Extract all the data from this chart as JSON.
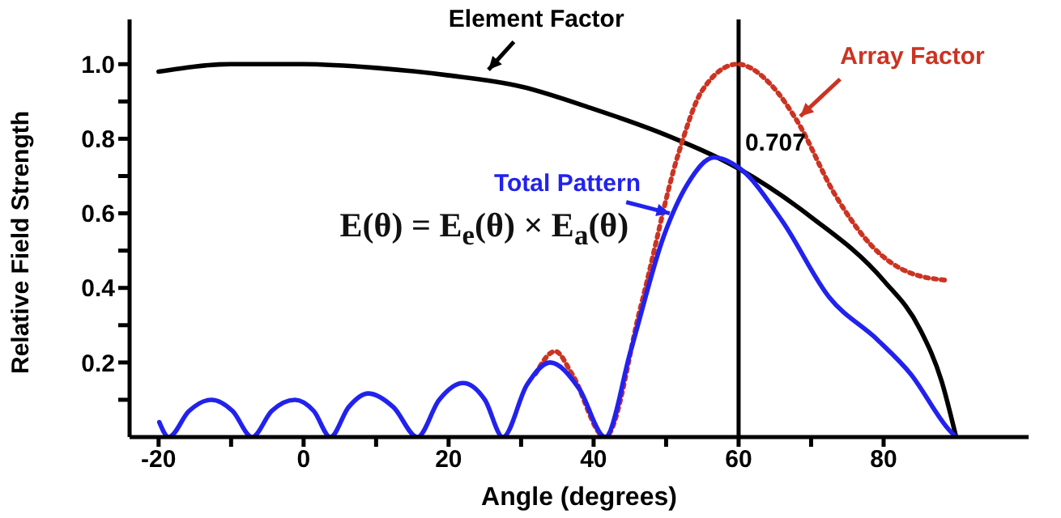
{
  "chart_data": {
    "type": "line",
    "xlabel": "Angle (degrees)",
    "ylabel": "Relative Field Strength",
    "xlim": [
      -24,
      100
    ],
    "ylim": [
      0,
      1.12
    ],
    "xticks": [
      -20,
      {
        "value": -10,
        "label": null
      },
      0,
      {
        "value": 10,
        "label": null
      },
      20,
      {
        "value": 30,
        "label": null
      },
      40,
      {
        "value": 50,
        "label": null
      },
      60,
      {
        "value": 70,
        "label": null
      },
      80
    ],
    "yticks": [
      {
        "value": 0.1,
        "label": null
      },
      0.2,
      {
        "value": 0.3,
        "label": null
      },
      0.4,
      {
        "value": 0.5,
        "label": null
      },
      0.6,
      {
        "value": 0.7,
        "label": null
      },
      0.8,
      {
        "value": 0.9,
        "label": null
      },
      {
        "value": 1,
        "label": "1.0"
      }
    ],
    "grid": false,
    "legend": false,
    "marker": "none",
    "series": [
      {
        "name": "Element Factor",
        "color": "#000000",
        "line_style": "solid",
        "x": [
          -20,
          -10,
          0,
          10,
          20,
          30,
          40,
          50,
          60,
          70,
          80,
          85,
          88,
          90
        ],
        "values": [
          0.98,
          1.0,
          1.0,
          0.99,
          0.97,
          0.94,
          0.88,
          0.81,
          0.72,
          0.59,
          0.42,
          0.29,
          0.15,
          0
        ]
      },
      {
        "name": "Array Factor",
        "color": "#cc3322",
        "line_style": "dotted",
        "x": [
          32,
          34.7,
          37,
          41.6,
          46.5,
          51.7,
          55,
          59.8,
          64.7,
          68,
          73.3,
          78.5,
          83.7,
          89
        ],
        "values": [
          0.17,
          0.23,
          0.17,
          0,
          0.35,
          0.76,
          0.93,
          1.0,
          0.94,
          0.85,
          0.65,
          0.51,
          0.44,
          0.42
        ]
      },
      {
        "name": "Total Pattern",
        "color": "#2222ee",
        "line_style": "solid",
        "x": [
          -19.9,
          -18.6,
          -15.8,
          -12.7,
          -9.8,
          -7.1,
          -4.4,
          -1.2,
          1.4,
          3.7,
          6.2,
          8.9,
          12.4,
          15.7,
          18.7,
          22,
          25,
          27.5,
          30.8,
          34,
          38,
          41.6,
          45.1,
          49.7,
          53,
          56.6,
          60.2,
          66,
          72.5,
          79.2,
          83.7,
          89,
          90
        ],
        "values": [
          0.04,
          0,
          0.07,
          0.1,
          0.07,
          0,
          0.07,
          0.1,
          0.07,
          0,
          0.08,
          0.117,
          0.08,
          0,
          0.1,
          0.145,
          0.1,
          0,
          0.14,
          0.2,
          0.13,
          0,
          0.23,
          0.54,
          0.68,
          0.75,
          0.72,
          0.58,
          0.375,
          0.26,
          0.17,
          0.02,
          0
        ]
      }
    ],
    "ref_lines": [
      {
        "axis": "x",
        "value": 60,
        "color": "#000000"
      }
    ],
    "annotations": [
      "E(θ) = E$_{e}$(θ) × E$_{a}$(θ)",
      {
        "text": "0.707",
        "x": 60,
        "y": 0.707
      }
    ]
  }
}
